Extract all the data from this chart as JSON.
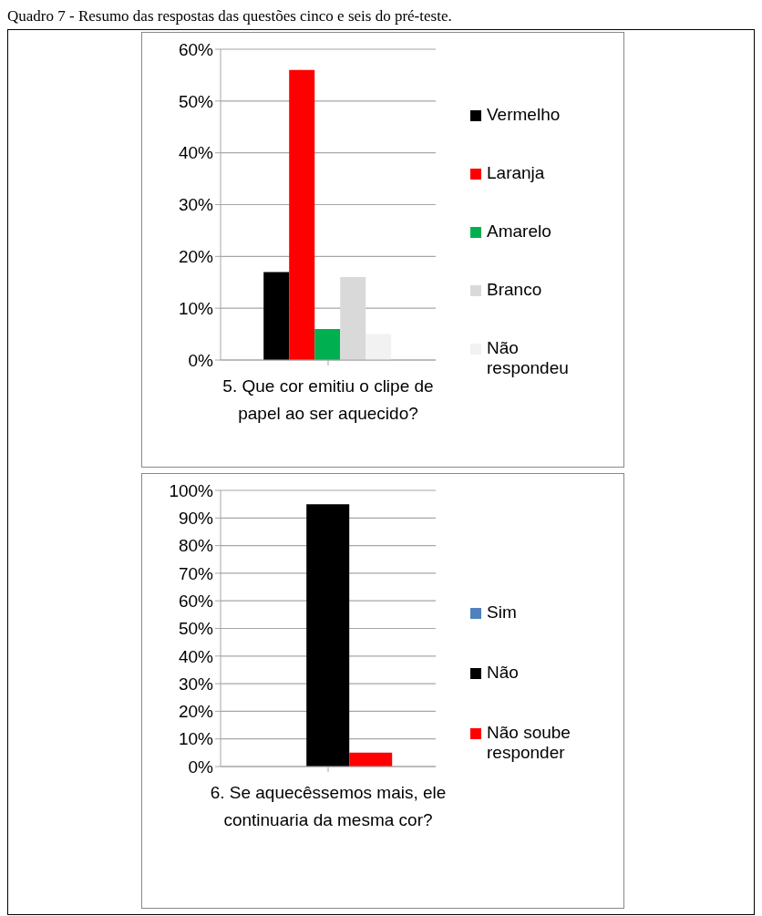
{
  "chart_data": [
    {
      "type": "bar",
      "title": "Quadro 7 - Resumo das respostas das questões cinco e seis do pré-teste.",
      "categories": [
        "5. Que cor emitiu o clipe de papel ao ser aquecido?"
      ],
      "series": [
        {
          "name": "Vermelho",
          "color": "#000000",
          "values": [
            17
          ]
        },
        {
          "name": "Laranja",
          "color": "#ff0000",
          "values": [
            56
          ]
        },
        {
          "name": "Amarelo",
          "color": "#00b050",
          "values": [
            6
          ]
        },
        {
          "name": "Branco",
          "color": "#d9d9d9",
          "values": [
            16
          ]
        },
        {
          "name": "Não respondeu",
          "color": "#f2f2f2",
          "values": [
            5
          ]
        }
      ],
      "ylim": [
        0,
        60
      ],
      "yticks": [
        {
          "value": 0,
          "label": "0%"
        },
        {
          "value": 10,
          "label": "10%"
        },
        {
          "value": 20,
          "label": "20%"
        },
        {
          "value": 30,
          "label": "30%"
        },
        {
          "value": 40,
          "label": "40%"
        },
        {
          "value": 50,
          "label": "50%"
        },
        {
          "value": 60,
          "label": "60%"
        }
      ],
      "grid": "y",
      "legend": "right"
    },
    {
      "type": "bar",
      "categories": [
        "6. Se aquecêssemos mais, ele continuaria da mesma cor?"
      ],
      "series": [
        {
          "name": "Sim",
          "color": "#4f81bd",
          "values": [
            0
          ]
        },
        {
          "name": "Não",
          "color": "#000000",
          "values": [
            95
          ]
        },
        {
          "name": "Não soube responder",
          "color": "#ff0000",
          "values": [
            5
          ]
        }
      ],
      "ylim": [
        0,
        100
      ],
      "yticks": [
        {
          "value": 0,
          "label": "0%"
        },
        {
          "value": 10,
          "label": "10%"
        },
        {
          "value": 20,
          "label": "20%"
        },
        {
          "value": 30,
          "label": "30%"
        },
        {
          "value": 40,
          "label": "40%"
        },
        {
          "value": 50,
          "label": "50%"
        },
        {
          "value": 60,
          "label": "60%"
        },
        {
          "value": 70,
          "label": "70%"
        },
        {
          "value": 80,
          "label": "80%"
        },
        {
          "value": 90,
          "label": "90%"
        },
        {
          "value": 100,
          "label": "100%"
        }
      ],
      "grid": "y",
      "legend": "right"
    }
  ]
}
